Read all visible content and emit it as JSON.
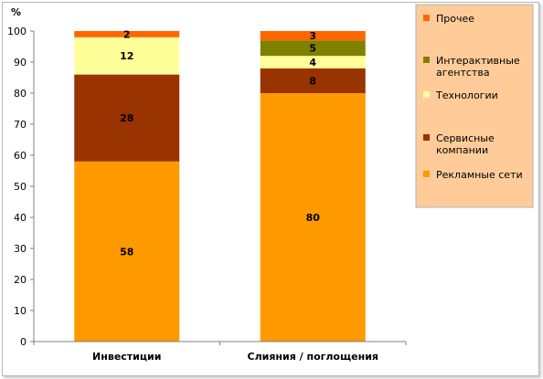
{
  "chart_data": {
    "type": "bar",
    "stacked": true,
    "title": "",
    "xlabel": "",
    "ylabel": "%",
    "ylim": [
      0,
      100
    ],
    "yticks": [
      0,
      10,
      20,
      30,
      40,
      50,
      60,
      70,
      80,
      90,
      100
    ],
    "grid": false,
    "legend_position": "right",
    "categories": [
      "Инвестиции",
      "Слияния / поглощения"
    ],
    "series": [
      {
        "name": "Рекламные сети",
        "values": [
          58,
          80
        ],
        "color": "#FF9900"
      },
      {
        "name": "Сервисные компании",
        "values": [
          28,
          8
        ],
        "color": "#993300"
      },
      {
        "name": "Технологии",
        "values": [
          12,
          4
        ],
        "color": "#FFFF99"
      },
      {
        "name": "Интерактивные агентства",
        "values": [
          0,
          5
        ],
        "color": "#808000"
      },
      {
        "name": "Прочее",
        "values": [
          2,
          3
        ],
        "color": "#FF6600"
      }
    ],
    "legend_order": [
      "Прочее",
      "Интерактивные агентства",
      "Технологии",
      "Сервисные компании",
      "Рекламные сети"
    ],
    "legend_labels": {
      "Прочее": [
        "Прочее"
      ],
      "Интерактивные агентства": [
        "Интерактивные",
        "агентства"
      ],
      "Технологии": [
        "Технологии"
      ],
      "Сервисные компании": [
        "Сервисные",
        "компании"
      ],
      "Рекламные сети": [
        "Рекламные сети"
      ]
    },
    "legend_background": "#FFCC99"
  }
}
